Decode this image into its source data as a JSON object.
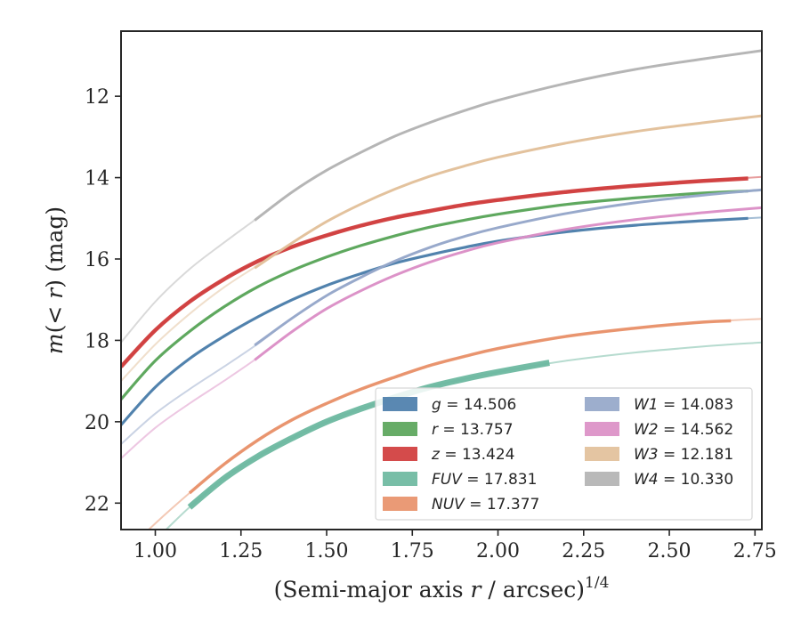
{
  "chart_data": {
    "type": "line",
    "title": "",
    "xlabel": "(Semi-major axis r / arcsec)",
    "xlabel_parts": {
      "pre": "(Semi-major axis ",
      "var": "r",
      "post": " / arcsec)",
      "exp": "1/4"
    },
    "ylabel": "m(< r) (mag)",
    "ylabel_parts": {
      "m": "m",
      "lt": "(< ",
      "r": "r",
      "post": ") (mag)"
    },
    "xlim": [
      0.9,
      2.77
    ],
    "ylim": [
      22.65,
      10.4
    ],
    "y_inverted": true,
    "xticks": [
      1.0,
      1.25,
      1.5,
      1.75,
      2.0,
      2.25,
      2.5,
      2.75
    ],
    "xtick_labels": [
      "1.00",
      "1.25",
      "1.50",
      "1.75",
      "2.00",
      "2.25",
      "2.50",
      "2.75"
    ],
    "yticks": [
      12,
      14,
      16,
      18,
      20,
      22
    ],
    "ytick_labels": [
      "12",
      "14",
      "16",
      "18",
      "20",
      "22"
    ],
    "grid": false,
    "legend_position": "lower-right",
    "series": [
      {
        "name": "g",
        "label": "g = 14.506",
        "band": "g",
        "value": "14.506",
        "color": "#4c7eab",
        "faint": [
          [
            0.9,
            20.08
          ],
          [
            1.0,
            19.15
          ],
          [
            1.1,
            18.45
          ],
          [
            1.2,
            17.9
          ],
          [
            1.3,
            17.42
          ],
          [
            1.4,
            17.0
          ],
          [
            1.5,
            16.65
          ],
          [
            1.6,
            16.36
          ],
          [
            1.7,
            16.1
          ],
          [
            1.8,
            15.9
          ],
          [
            1.9,
            15.72
          ],
          [
            2.0,
            15.56
          ],
          [
            2.2,
            15.33
          ],
          [
            2.4,
            15.17
          ],
          [
            2.6,
            15.06
          ],
          [
            2.77,
            14.98
          ]
        ],
        "bold": [
          [
            0.9,
            20.08
          ],
          [
            1.0,
            19.15
          ],
          [
            1.1,
            18.45
          ],
          [
            1.2,
            17.9
          ],
          [
            1.3,
            17.42
          ],
          [
            1.4,
            17.0
          ],
          [
            1.5,
            16.65
          ],
          [
            1.6,
            16.36
          ],
          [
            1.7,
            16.1
          ],
          [
            1.8,
            15.9
          ],
          [
            1.9,
            15.72
          ],
          [
            2.0,
            15.56
          ],
          [
            2.2,
            15.33
          ],
          [
            2.4,
            15.17
          ],
          [
            2.6,
            15.06
          ],
          [
            2.73,
            15.0
          ]
        ],
        "bold_width": 3.2
      },
      {
        "name": "r",
        "label": "r = 13.757",
        "band": "r",
        "value": "13.757",
        "color": "#5aa55a",
        "faint": [
          [
            0.9,
            19.45
          ],
          [
            1.0,
            18.5
          ],
          [
            1.1,
            17.78
          ],
          [
            1.2,
            17.18
          ],
          [
            1.3,
            16.68
          ],
          [
            1.4,
            16.28
          ],
          [
            1.5,
            15.95
          ],
          [
            1.6,
            15.67
          ],
          [
            1.7,
            15.43
          ],
          [
            1.8,
            15.22
          ],
          [
            1.9,
            15.05
          ],
          [
            2.0,
            14.9
          ],
          [
            2.2,
            14.66
          ],
          [
            2.4,
            14.5
          ],
          [
            2.6,
            14.38
          ],
          [
            2.77,
            14.31
          ]
        ],
        "bold": [
          [
            0.9,
            19.45
          ],
          [
            1.0,
            18.5
          ],
          [
            1.1,
            17.78
          ],
          [
            1.2,
            17.18
          ],
          [
            1.3,
            16.68
          ],
          [
            1.4,
            16.28
          ],
          [
            1.5,
            15.95
          ],
          [
            1.6,
            15.67
          ],
          [
            1.7,
            15.43
          ],
          [
            1.8,
            15.22
          ],
          [
            1.9,
            15.05
          ],
          [
            2.0,
            14.9
          ],
          [
            2.2,
            14.66
          ],
          [
            2.4,
            14.5
          ],
          [
            2.6,
            14.38
          ],
          [
            2.73,
            14.33
          ]
        ],
        "bold_width": 3.2
      },
      {
        "name": "z",
        "label": "z = 13.424",
        "band": "z",
        "value": "13.424",
        "color": "#d03c3c",
        "faint": [
          [
            0.9,
            18.65
          ],
          [
            1.0,
            17.75
          ],
          [
            1.1,
            17.05
          ],
          [
            1.2,
            16.5
          ],
          [
            1.3,
            16.05
          ],
          [
            1.4,
            15.7
          ],
          [
            1.5,
            15.42
          ],
          [
            1.6,
            15.18
          ],
          [
            1.7,
            14.98
          ],
          [
            1.8,
            14.82
          ],
          [
            1.9,
            14.67
          ],
          [
            2.0,
            14.55
          ],
          [
            2.2,
            14.35
          ],
          [
            2.4,
            14.2
          ],
          [
            2.6,
            14.08
          ],
          [
            2.77,
            13.98
          ]
        ],
        "bold": [
          [
            0.9,
            18.65
          ],
          [
            1.0,
            17.75
          ],
          [
            1.1,
            17.05
          ],
          [
            1.2,
            16.5
          ],
          [
            1.3,
            16.05
          ],
          [
            1.4,
            15.7
          ],
          [
            1.5,
            15.42
          ],
          [
            1.6,
            15.18
          ],
          [
            1.7,
            14.98
          ],
          [
            1.8,
            14.82
          ],
          [
            1.9,
            14.67
          ],
          [
            2.0,
            14.55
          ],
          [
            2.2,
            14.35
          ],
          [
            2.4,
            14.2
          ],
          [
            2.6,
            14.08
          ],
          [
            2.73,
            14.02
          ]
        ],
        "bold_width": 4.5
      },
      {
        "name": "FUV",
        "label": "FUV = 17.831",
        "band": "FUV",
        "value": "17.831",
        "color": "#6db8a0",
        "faint": [
          [
            0.9,
            23.6
          ],
          [
            1.0,
            22.9
          ],
          [
            1.1,
            22.1
          ],
          [
            1.2,
            21.4
          ],
          [
            1.3,
            20.85
          ],
          [
            1.4,
            20.4
          ],
          [
            1.5,
            20.0
          ],
          [
            1.6,
            19.68
          ],
          [
            1.7,
            19.4
          ],
          [
            1.8,
            19.15
          ],
          [
            1.9,
            18.95
          ],
          [
            2.0,
            18.78
          ],
          [
            2.2,
            18.5
          ],
          [
            2.4,
            18.3
          ],
          [
            2.6,
            18.15
          ],
          [
            2.77,
            18.05
          ]
        ],
        "bold": [
          [
            1.1,
            22.1
          ],
          [
            1.2,
            21.4
          ],
          [
            1.3,
            20.85
          ],
          [
            1.4,
            20.4
          ],
          [
            1.5,
            20.0
          ],
          [
            1.6,
            19.68
          ],
          [
            1.7,
            19.4
          ],
          [
            1.8,
            19.15
          ],
          [
            1.9,
            18.95
          ],
          [
            2.0,
            18.78
          ],
          [
            2.15,
            18.55
          ]
        ],
        "bold_width": 7
      },
      {
        "name": "NUV",
        "label": "NUV = 17.377",
        "band": "NUV",
        "value": "17.377",
        "color": "#e8916a",
        "faint": [
          [
            0.9,
            23.3
          ],
          [
            1.0,
            22.5
          ],
          [
            1.1,
            21.75
          ],
          [
            1.2,
            21.05
          ],
          [
            1.3,
            20.45
          ],
          [
            1.4,
            19.95
          ],
          [
            1.5,
            19.55
          ],
          [
            1.6,
            19.2
          ],
          [
            1.7,
            18.9
          ],
          [
            1.8,
            18.62
          ],
          [
            1.9,
            18.4
          ],
          [
            2.0,
            18.2
          ],
          [
            2.2,
            17.9
          ],
          [
            2.4,
            17.7
          ],
          [
            2.6,
            17.55
          ],
          [
            2.77,
            17.47
          ]
        ],
        "bold": [
          [
            1.1,
            21.75
          ],
          [
            1.2,
            21.05
          ],
          [
            1.3,
            20.45
          ],
          [
            1.4,
            19.95
          ],
          [
            1.5,
            19.55
          ],
          [
            1.6,
            19.2
          ],
          [
            1.7,
            18.9
          ],
          [
            1.8,
            18.62
          ],
          [
            1.9,
            18.4
          ],
          [
            2.0,
            18.2
          ],
          [
            2.2,
            17.9
          ],
          [
            2.4,
            17.7
          ],
          [
            2.6,
            17.55
          ],
          [
            2.68,
            17.52
          ]
        ],
        "bold_width": 3.5
      },
      {
        "name": "W1",
        "label": "W1 = 14.083",
        "band": "W1",
        "value": "14.083",
        "color": "#95a7c9",
        "faint": [
          [
            0.9,
            20.55
          ],
          [
            1.0,
            19.8
          ],
          [
            1.1,
            19.2
          ],
          [
            1.2,
            18.65
          ],
          [
            1.3,
            18.08
          ],
          [
            1.4,
            17.45
          ],
          [
            1.5,
            16.9
          ],
          [
            1.6,
            16.45
          ],
          [
            1.7,
            16.05
          ],
          [
            1.8,
            15.72
          ],
          [
            1.9,
            15.45
          ],
          [
            2.0,
            15.23
          ],
          [
            2.2,
            14.88
          ],
          [
            2.4,
            14.62
          ],
          [
            2.6,
            14.43
          ],
          [
            2.77,
            14.3
          ]
        ],
        "bold": [
          [
            1.29,
            18.12
          ],
          [
            1.4,
            17.45
          ],
          [
            1.5,
            16.9
          ],
          [
            1.6,
            16.45
          ],
          [
            1.7,
            16.05
          ],
          [
            1.8,
            15.72
          ],
          [
            1.9,
            15.45
          ],
          [
            2.0,
            15.23
          ],
          [
            2.2,
            14.88
          ],
          [
            2.4,
            14.62
          ],
          [
            2.6,
            14.43
          ],
          [
            2.77,
            14.3
          ]
        ],
        "bold_width": 3
      },
      {
        "name": "W2",
        "label": "W2 = 14.562",
        "band": "W2",
        "value": "14.562",
        "color": "#db8fc6",
        "faint": [
          [
            0.9,
            20.9
          ],
          [
            1.0,
            20.15
          ],
          [
            1.1,
            19.55
          ],
          [
            1.2,
            19.0
          ],
          [
            1.3,
            18.42
          ],
          [
            1.4,
            17.78
          ],
          [
            1.5,
            17.22
          ],
          [
            1.6,
            16.78
          ],
          [
            1.7,
            16.4
          ],
          [
            1.8,
            16.08
          ],
          [
            1.9,
            15.82
          ],
          [
            2.0,
            15.6
          ],
          [
            2.2,
            15.27
          ],
          [
            2.4,
            15.03
          ],
          [
            2.6,
            14.86
          ],
          [
            2.77,
            14.74
          ]
        ],
        "bold": [
          [
            1.29,
            18.48
          ],
          [
            1.4,
            17.78
          ],
          [
            1.5,
            17.22
          ],
          [
            1.6,
            16.78
          ],
          [
            1.7,
            16.4
          ],
          [
            1.8,
            16.08
          ],
          [
            1.9,
            15.82
          ],
          [
            2.0,
            15.6
          ],
          [
            2.2,
            15.27
          ],
          [
            2.4,
            15.03
          ],
          [
            2.6,
            14.86
          ],
          [
            2.77,
            14.74
          ]
        ],
        "bold_width": 3
      },
      {
        "name": "W3",
        "label": "W3 = 12.181",
        "band": "W3",
        "value": "12.181",
        "color": "#e2c09a",
        "faint": [
          [
            0.9,
            19.0
          ],
          [
            1.0,
            18.1
          ],
          [
            1.1,
            17.35
          ],
          [
            1.2,
            16.7
          ],
          [
            1.3,
            16.15
          ],
          [
            1.4,
            15.6
          ],
          [
            1.5,
            15.08
          ],
          [
            1.6,
            14.65
          ],
          [
            1.7,
            14.28
          ],
          [
            1.8,
            13.97
          ],
          [
            1.9,
            13.72
          ],
          [
            2.0,
            13.5
          ],
          [
            2.2,
            13.15
          ],
          [
            2.4,
            12.87
          ],
          [
            2.6,
            12.65
          ],
          [
            2.77,
            12.48
          ]
        ],
        "bold": [
          [
            1.29,
            16.22
          ],
          [
            1.4,
            15.6
          ],
          [
            1.5,
            15.08
          ],
          [
            1.6,
            14.65
          ],
          [
            1.7,
            14.28
          ],
          [
            1.8,
            13.97
          ],
          [
            1.9,
            13.72
          ],
          [
            2.0,
            13.5
          ],
          [
            2.2,
            13.15
          ],
          [
            2.4,
            12.87
          ],
          [
            2.6,
            12.65
          ],
          [
            2.77,
            12.48
          ]
        ],
        "bold_width": 3
      },
      {
        "name": "W4",
        "label": "W4 = 10.330",
        "band": "W4",
        "value": "10.330",
        "color": "#b3b3b3",
        "faint": [
          [
            0.9,
            18.05
          ],
          [
            1.0,
            17.05
          ],
          [
            1.1,
            16.25
          ],
          [
            1.2,
            15.6
          ],
          [
            1.3,
            14.98
          ],
          [
            1.4,
            14.35
          ],
          [
            1.5,
            13.82
          ],
          [
            1.6,
            13.38
          ],
          [
            1.7,
            12.98
          ],
          [
            1.8,
            12.65
          ],
          [
            1.9,
            12.36
          ],
          [
            2.0,
            12.1
          ],
          [
            2.2,
            11.68
          ],
          [
            2.4,
            11.34
          ],
          [
            2.6,
            11.08
          ],
          [
            2.77,
            10.88
          ]
        ],
        "bold": [
          [
            1.29,
            15.05
          ],
          [
            1.4,
            14.35
          ],
          [
            1.5,
            13.82
          ],
          [
            1.6,
            13.38
          ],
          [
            1.7,
            12.98
          ],
          [
            1.8,
            12.65
          ],
          [
            1.9,
            12.36
          ],
          [
            2.0,
            12.1
          ],
          [
            2.2,
            11.68
          ],
          [
            2.4,
            11.34
          ],
          [
            2.6,
            11.08
          ],
          [
            2.77,
            10.88
          ]
        ],
        "bold_width": 3
      }
    ],
    "legend_columns": [
      [
        "g",
        "r",
        "z",
        "FUV",
        "NUV"
      ],
      [
        "W1",
        "W2",
        "W3",
        "W4"
      ]
    ]
  }
}
